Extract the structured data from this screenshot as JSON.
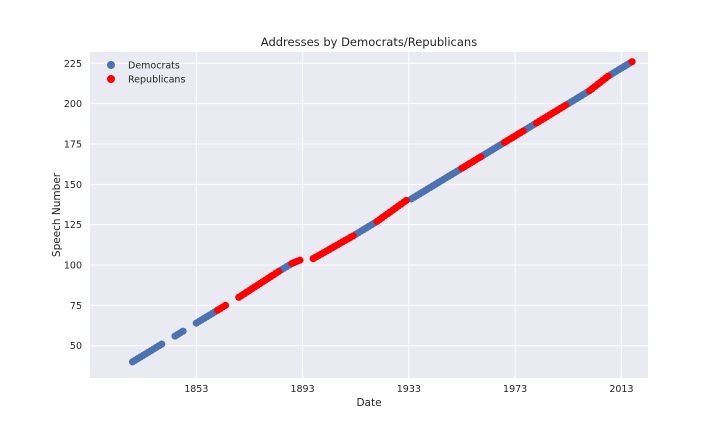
{
  "chart_data": {
    "type": "scatter",
    "title": "Addresses by Democrats/Republicans",
    "xlabel": "Date",
    "ylabel": "Speech Number",
    "xlim": [
      1813,
      2023
    ],
    "ylim": [
      30,
      232
    ],
    "xticks": [
      1853,
      1893,
      1933,
      1973,
      2013
    ],
    "yticks": [
      50,
      75,
      100,
      125,
      150,
      175,
      200,
      225
    ],
    "grid": true,
    "legend_position": "top-left",
    "colors": {
      "Democrats": "#4c72b0",
      "Republicans": "#ff0000",
      "background": "#eaeaf2",
      "grid": "#ffffff"
    },
    "series": [
      {
        "name": "Democrats",
        "segments": [
          {
            "x_start": 1829,
            "x_end": 1840,
            "y_start": 40,
            "y_end": 51
          },
          {
            "x_start": 1845,
            "x_end": 1848,
            "y_start": 56,
            "y_end": 59
          },
          {
            "x_start": 1853,
            "x_end": 1860,
            "y_start": 64,
            "y_end": 71
          },
          {
            "x_start": 1885,
            "x_end": 1888,
            "y_start": 97,
            "y_end": 100
          },
          {
            "x_start": 1913,
            "x_end": 1920,
            "y_start": 119,
            "y_end": 126
          },
          {
            "x_start": 1934,
            "x_end": 1952,
            "y_start": 141,
            "y_end": 159
          },
          {
            "x_start": 1961,
            "x_end": 1968,
            "y_start": 168,
            "y_end": 175
          },
          {
            "x_start": 1977,
            "x_end": 1980,
            "y_start": 184,
            "y_end": 187
          },
          {
            "x_start": 1993,
            "x_end": 2000,
            "y_start": 200,
            "y_end": 207
          },
          {
            "x_start": 2009,
            "x_end": 2016,
            "y_start": 218,
            "y_end": 225
          }
        ]
      },
      {
        "name": "Republicans",
        "segments": [
          {
            "x_start": 1861,
            "x_end": 1864,
            "y_start": 72,
            "y_end": 75
          },
          {
            "x_start": 1869,
            "x_end": 1884,
            "y_start": 80,
            "y_end": 96
          },
          {
            "x_start": 1889,
            "x_end": 1892,
            "y_start": 101,
            "y_end": 103
          },
          {
            "x_start": 1897,
            "x_end": 1912,
            "y_start": 104,
            "y_end": 118
          },
          {
            "x_start": 1921,
            "x_end": 1932,
            "y_start": 127,
            "y_end": 140
          },
          {
            "x_start": 1953,
            "x_end": 1960,
            "y_start": 160,
            "y_end": 167
          },
          {
            "x_start": 1969,
            "x_end": 1976,
            "y_start": 176,
            "y_end": 183
          },
          {
            "x_start": 1981,
            "x_end": 1992,
            "y_start": 188,
            "y_end": 199
          },
          {
            "x_start": 2001,
            "x_end": 2008,
            "y_start": 208,
            "y_end": 217
          },
          {
            "x_start": 2017,
            "x_end": 2017,
            "y_start": 226,
            "y_end": 226
          }
        ]
      }
    ]
  }
}
